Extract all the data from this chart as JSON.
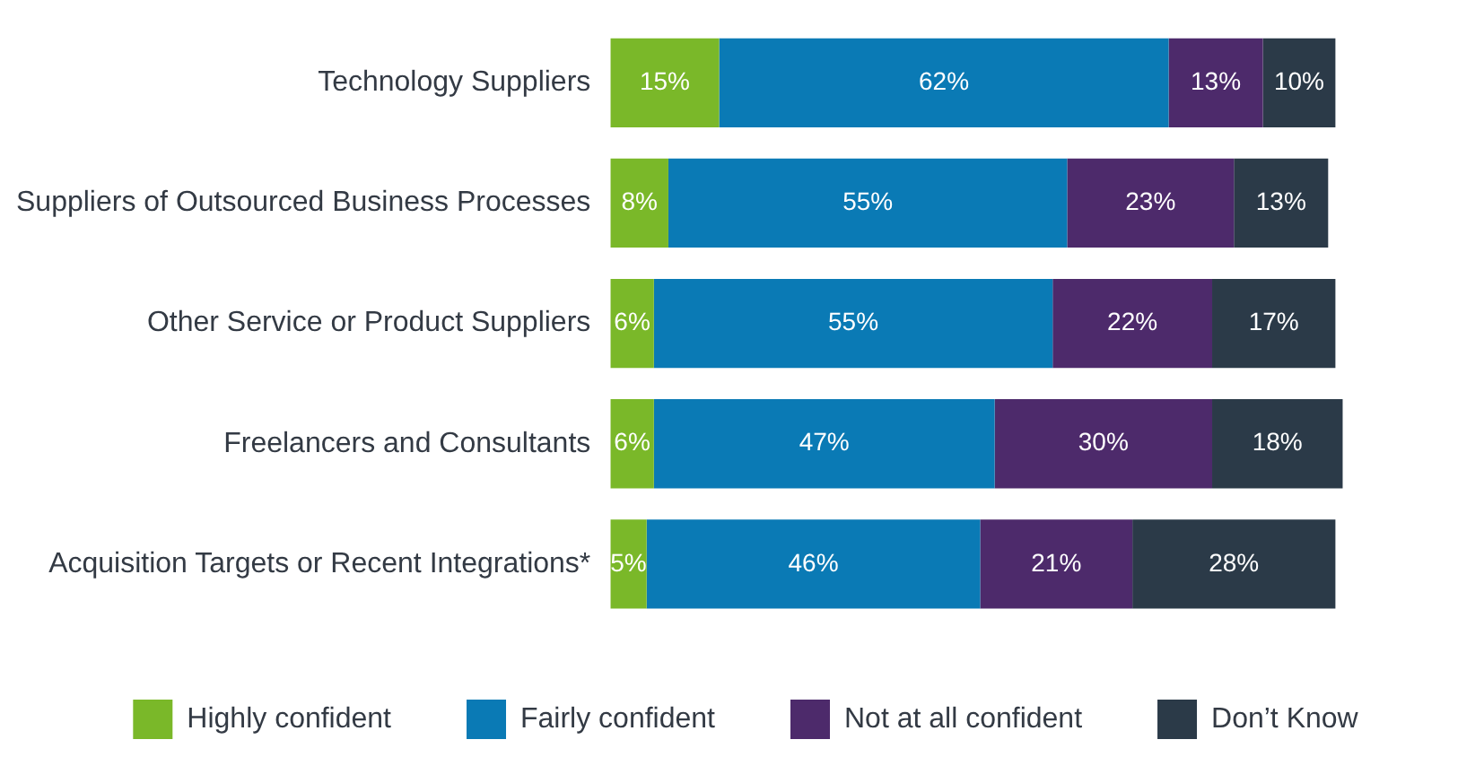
{
  "chart_data": {
    "type": "bar",
    "orientation": "horizontal",
    "stacked": true,
    "legend": "bottom",
    "tick_labels": "y",
    "categories": [
      "Technology Suppliers",
      "Suppliers of Outsourced Business Processes",
      "Other Service or Product Suppliers",
      "Freelancers and Consultants",
      "Acquisition Targets or Recent Integrations*"
    ],
    "series": [
      {
        "name": "Highly confident",
        "color": "#7ab829",
        "values": [
          15,
          8,
          6,
          6,
          5
        ],
        "value_labels": [
          "15%",
          "8%",
          "6%",
          "6%",
          "5%"
        ]
      },
      {
        "name": "Fairly confident",
        "color": "#0a7ab5",
        "values": [
          62,
          55,
          55,
          47,
          46
        ],
        "value_labels": [
          "62%",
          "55%",
          "55%",
          "47%",
          "46%"
        ]
      },
      {
        "name": "Not at all confident",
        "color": "#4d2a6b",
        "values": [
          13,
          23,
          22,
          30,
          21
        ],
        "value_labels": [
          "13%",
          "23%",
          "22%",
          "30%",
          "21%"
        ]
      },
      {
        "name": "Don’t Know",
        "color": "#2b3a48",
        "values": [
          10,
          13,
          17,
          18,
          28
        ],
        "value_labels": [
          "10%",
          "13%",
          "17%",
          "18%",
          "28%"
        ]
      }
    ]
  }
}
